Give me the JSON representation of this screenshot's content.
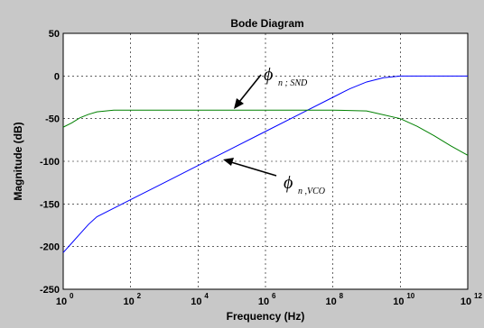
{
  "chart_data": {
    "type": "line",
    "title": "Bode Diagram",
    "xlabel": "Frequency  (Hz)",
    "ylabel": "Magnitude (dB)",
    "xscale": "log",
    "xlim": [
      1,
      1000000000000
    ],
    "ylim": [
      -250,
      50
    ],
    "grid": true,
    "x_ticks": [
      {
        "value": 1,
        "base": "10",
        "exp": "0"
      },
      {
        "value": 100,
        "base": "10",
        "exp": "2"
      },
      {
        "value": 10000,
        "base": "10",
        "exp": "4"
      },
      {
        "value": 1000000,
        "base": "10",
        "exp": "6"
      },
      {
        "value": 100000000,
        "base": "10",
        "exp": "8"
      },
      {
        "value": 10000000000,
        "base": "10",
        "exp": "10"
      },
      {
        "value": 1000000000000,
        "base": "10",
        "exp": "12"
      }
    ],
    "y_ticks": [
      {
        "value": 50,
        "label": "50"
      },
      {
        "value": 0,
        "label": "0"
      },
      {
        "value": -50,
        "label": "-50"
      },
      {
        "value": -100,
        "label": "-100"
      },
      {
        "value": -150,
        "label": "-150"
      },
      {
        "value": -200,
        "label": "-200"
      },
      {
        "value": -250,
        "label": "-250"
      }
    ],
    "series": [
      {
        "color": "#0000ff",
        "x": [
          1,
          1.78,
          3.16,
          5.62,
          10,
          31.6,
          100,
          1000,
          10000,
          100000,
          1000000,
          10000000,
          100000000,
          316000000,
          1000000000,
          3160000000,
          10000000000,
          1000000000000
        ],
        "y": [
          -207,
          -196,
          -185,
          -174,
          -165,
          -155,
          -145,
          -125,
          -105,
          -85,
          -65,
          -45,
          -25,
          -15,
          -7,
          -2,
          0,
          0
        ]
      },
      {
        "color": "#008000",
        "x": [
          1,
          1.78,
          3.16,
          5.62,
          10,
          31.6,
          100,
          1000,
          10000,
          100000,
          1000000,
          10000000,
          100000000,
          1000000000,
          10000000000,
          31600000000,
          100000000000,
          316000000000,
          1000000000000
        ],
        "y": [
          -60,
          -55,
          -49,
          -45,
          -42,
          -40,
          -40,
          -40,
          -40,
          -40,
          -40,
          -40,
          -40,
          -41,
          -50,
          -59,
          -70,
          -82,
          -93
        ]
      }
    ],
    "annotations": [
      {
        "symbol": "ϕ",
        "subscript": "n ; SND"
      },
      {
        "symbol": "ϕ",
        "subscript": "n ,VCO"
      }
    ]
  }
}
